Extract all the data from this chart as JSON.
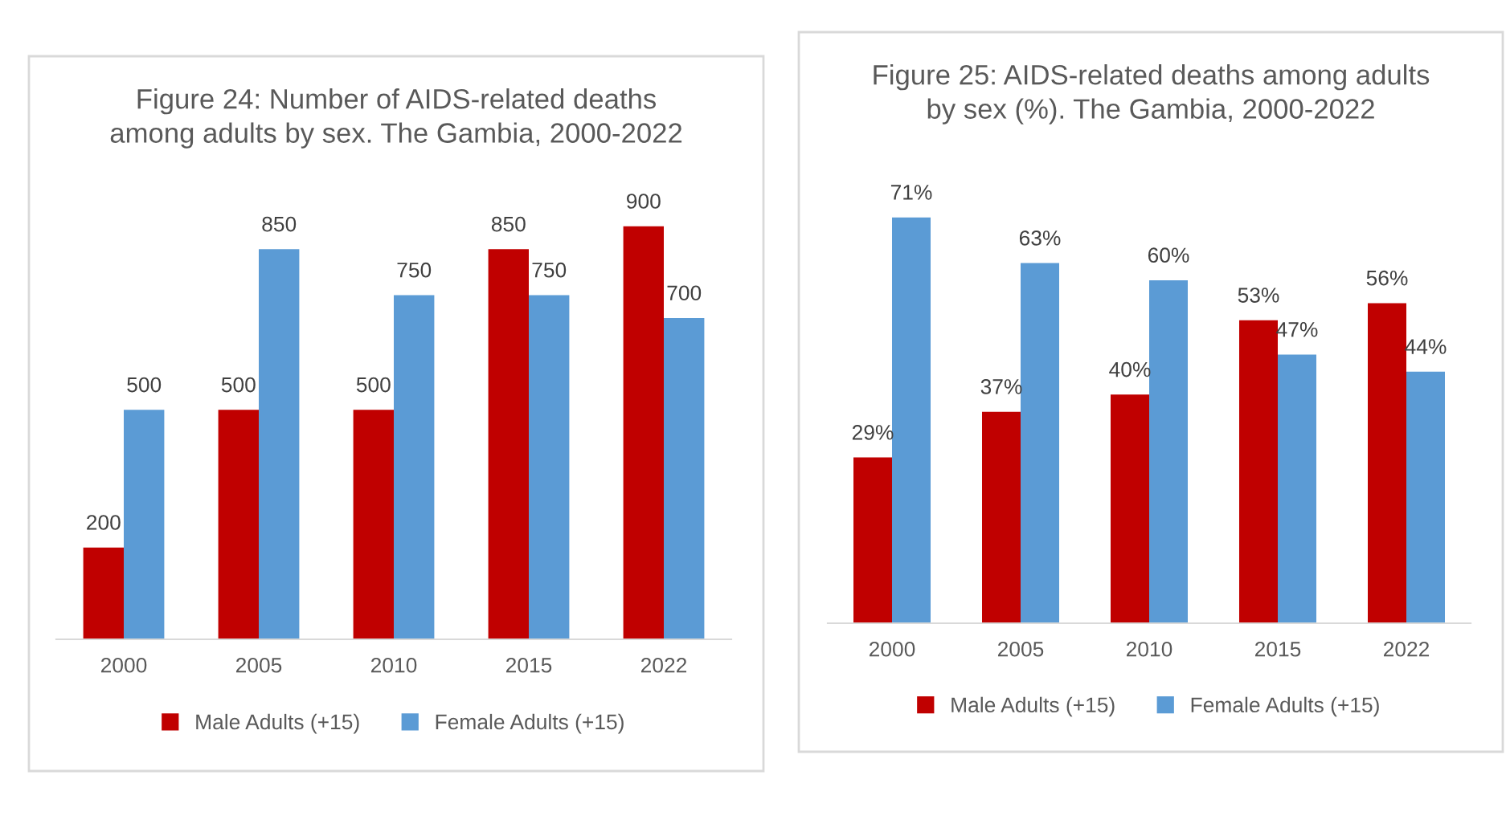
{
  "chart_data": [
    {
      "type": "bar",
      "title": "Figure 24: Number of AIDS-related deaths\namong adults by sex. The Gambia, 2000-2022",
      "categories": [
        "2000",
        "2005",
        "2010",
        "2015",
        "2022"
      ],
      "series": [
        {
          "name": "Male Adults (+15)",
          "color": "#c00000",
          "values": [
            200,
            500,
            500,
            850,
            900
          ]
        },
        {
          "name": "Female Adults (+15)",
          "color": "#5b9bd5",
          "values": [
            500,
            850,
            750,
            750,
            700
          ]
        }
      ],
      "data_labels": true,
      "legend": "bottom",
      "grid": false,
      "tick_labels": "x"
    },
    {
      "type": "bar",
      "title": "Figure 25: AIDS-related deaths among adults\nby sex (%). The Gambia, 2000-2022",
      "categories": [
        "2000",
        "2005",
        "2010",
        "2015",
        "2022"
      ],
      "series": [
        {
          "name": "Male Adults (+15)",
          "color": "#c00000",
          "values": [
            29,
            37,
            40,
            53,
            56
          ],
          "value_labels": [
            "29%",
            "37%",
            "40%",
            "53%",
            "56%"
          ]
        },
        {
          "name": "Female Adults (+15)",
          "color": "#5b9bd5",
          "values": [
            71,
            63,
            60,
            47,
            44
          ],
          "value_labels": [
            "71%",
            "63%",
            "60%",
            "47%",
            "44%"
          ]
        }
      ],
      "legend": "bottom",
      "grid": false,
      "tick_labels": "x"
    }
  ]
}
